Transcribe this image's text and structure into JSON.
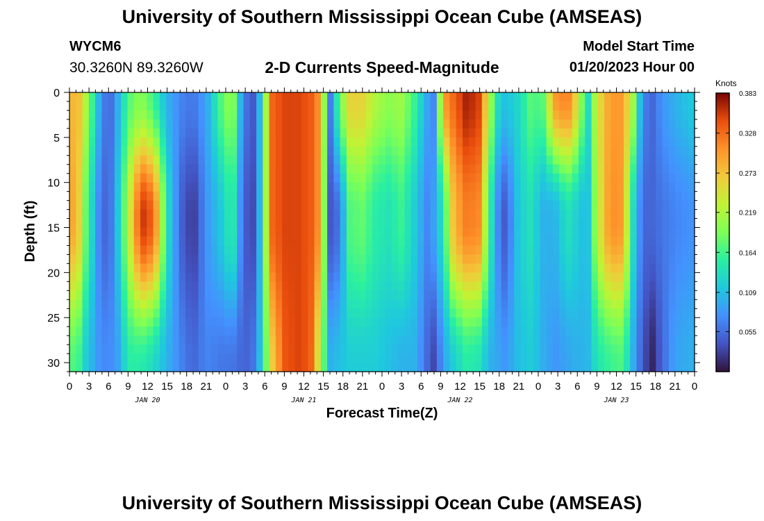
{
  "header": {
    "title": "University of Southern Mississippi Ocean Cube (AMSEAS)",
    "station": "WYCM6",
    "coordinates": "30.3260N  89.3260W",
    "subtitle": "2-D Currents Speed-Magnitude",
    "model_start_label": "Model Start Time",
    "model_start_value": "01/20/2023 Hour 00"
  },
  "footer": {
    "title": "University of Southern Mississippi Ocean Cube (AMSEAS)"
  },
  "chart_data": {
    "type": "heatmap",
    "title": "2-D Currents Speed-Magnitude",
    "xlabel": "Forecast Time(Z)",
    "ylabel": "Depth (ft)",
    "x_ticks": [
      "0",
      "3",
      "6",
      "9",
      "12",
      "15",
      "18",
      "21",
      "0",
      "3",
      "6",
      "9",
      "12",
      "15",
      "18",
      "21",
      "0",
      "3",
      "6",
      "9",
      "12",
      "15",
      "18",
      "21",
      "0",
      "3",
      "6",
      "9",
      "12",
      "15",
      "18",
      "21",
      "0"
    ],
    "x_range_hours": [
      0,
      96
    ],
    "day_labels": [
      {
        "label": "JAN 20",
        "hour": 12
      },
      {
        "label": "JAN 21",
        "hour": 36
      },
      {
        "label": "JAN 22",
        "hour": 60
      },
      {
        "label": "JAN 23",
        "hour": 84
      }
    ],
    "y_ticks": [
      "0",
      "5",
      "10",
      "15",
      "20",
      "25",
      "30"
    ],
    "y_range_ft": [
      0,
      31
    ],
    "y_inverted": true,
    "colorbar": {
      "units": "Knots",
      "min": 0,
      "max": 0.383,
      "tick_labels": [
        "0.383",
        "0.328",
        "0.273",
        "0.219",
        "0.164",
        "0.109",
        "0.055"
      ],
      "tick_values": [
        0.383,
        0.328,
        0.273,
        0.219,
        0.164,
        0.109,
        0.055
      ]
    },
    "speed_bands_knots": [
      {
        "hour": 0.0,
        "top": 0.26,
        "mid": 0.28,
        "bot": 0.16
      },
      {
        "hour": 1.0,
        "top": 0.3,
        "mid": 0.3,
        "bot": 0.18
      },
      {
        "hour": 2.5,
        "top": 0.22,
        "mid": 0.18,
        "bot": 0.12
      },
      {
        "hour": 4.5,
        "top": 0.1,
        "mid": 0.07,
        "bot": 0.08
      },
      {
        "hour": 6.0,
        "top": 0.04,
        "mid": 0.04,
        "bot": 0.07
      },
      {
        "hour": 7.5,
        "top": 0.1,
        "mid": 0.12,
        "bot": 0.09
      },
      {
        "hour": 9.0,
        "top": 0.17,
        "mid": 0.22,
        "bot": 0.15
      },
      {
        "hour": 11.0,
        "top": 0.2,
        "mid": 0.36,
        "bot": 0.15
      },
      {
        "hour": 13.0,
        "top": 0.16,
        "mid": 0.33,
        "bot": 0.13
      },
      {
        "hour": 15.0,
        "top": 0.1,
        "mid": 0.14,
        "bot": 0.1
      },
      {
        "hour": 17.0,
        "top": 0.07,
        "mid": 0.05,
        "bot": 0.07
      },
      {
        "hour": 19.0,
        "top": 0.06,
        "mid": 0.02,
        "bot": 0.05
      },
      {
        "hour": 21.0,
        "top": 0.09,
        "mid": 0.08,
        "bot": 0.07
      },
      {
        "hour": 23.5,
        "top": 0.18,
        "mid": 0.12,
        "bot": 0.06
      },
      {
        "hour": 25.0,
        "top": 0.21,
        "mid": 0.16,
        "bot": 0.06
      },
      {
        "hour": 26.5,
        "top": 0.08,
        "mid": 0.06,
        "bot": 0.05
      },
      {
        "hour": 28.0,
        "top": 0.03,
        "mid": 0.02,
        "bot": 0.05
      },
      {
        "hour": 29.5,
        "top": 0.12,
        "mid": 0.12,
        "bot": 0.12
      },
      {
        "hour": 31.0,
        "top": 0.33,
        "mid": 0.33,
        "bot": 0.26
      },
      {
        "hour": 33.0,
        "top": 0.35,
        "mid": 0.35,
        "bot": 0.34
      },
      {
        "hour": 35.0,
        "top": 0.35,
        "mid": 0.35,
        "bot": 0.35
      },
      {
        "hour": 37.0,
        "top": 0.34,
        "mid": 0.34,
        "bot": 0.34
      },
      {
        "hour": 38.5,
        "top": 0.3,
        "mid": 0.3,
        "bot": 0.22
      },
      {
        "hour": 40.0,
        "top": 0.06,
        "mid": 0.04,
        "bot": 0.1
      },
      {
        "hour": 41.5,
        "top": 0.18,
        "mid": 0.06,
        "bot": 0.11
      },
      {
        "hour": 43.0,
        "top": 0.26,
        "mid": 0.17,
        "bot": 0.12
      },
      {
        "hour": 45.0,
        "top": 0.26,
        "mid": 0.18,
        "bot": 0.12
      },
      {
        "hour": 47.0,
        "top": 0.22,
        "mid": 0.15,
        "bot": 0.12
      },
      {
        "hour": 49.0,
        "top": 0.2,
        "mid": 0.14,
        "bot": 0.11
      },
      {
        "hour": 51.0,
        "top": 0.21,
        "mid": 0.16,
        "bot": 0.1
      },
      {
        "hour": 53.0,
        "top": 0.16,
        "mid": 0.12,
        "bot": 0.1
      },
      {
        "hour": 55.0,
        "top": 0.09,
        "mid": 0.07,
        "bot": 0.05
      },
      {
        "hour": 56.0,
        "top": 0.07,
        "mid": 0.09,
        "bot": 0.03
      },
      {
        "hour": 57.5,
        "top": 0.3,
        "mid": 0.15,
        "bot": 0.09
      },
      {
        "hour": 59.0,
        "top": 0.33,
        "mid": 0.28,
        "bot": 0.12
      },
      {
        "hour": 61.0,
        "top": 0.37,
        "mid": 0.32,
        "bot": 0.15
      },
      {
        "hour": 63.0,
        "top": 0.35,
        "mid": 0.31,
        "bot": 0.14
      },
      {
        "hour": 64.5,
        "top": 0.22,
        "mid": 0.16,
        "bot": 0.1
      },
      {
        "hour": 66.0,
        "top": 0.12,
        "mid": 0.06,
        "bot": 0.09
      },
      {
        "hour": 67.0,
        "top": 0.11,
        "mid": 0.04,
        "bot": 0.08
      },
      {
        "hour": 69.0,
        "top": 0.13,
        "mid": 0.12,
        "bot": 0.11
      },
      {
        "hour": 71.0,
        "top": 0.18,
        "mid": 0.14,
        "bot": 0.12
      },
      {
        "hour": 72.5,
        "top": 0.16,
        "mid": 0.1,
        "bot": 0.1
      },
      {
        "hour": 74.5,
        "top": 0.3,
        "mid": 0.1,
        "bot": 0.08
      },
      {
        "hour": 76.5,
        "top": 0.32,
        "mid": 0.14,
        "bot": 0.09
      },
      {
        "hour": 78.0,
        "top": 0.25,
        "mid": 0.12,
        "bot": 0.1
      },
      {
        "hour": 79.5,
        "top": 0.12,
        "mid": 0.1,
        "bot": 0.1
      },
      {
        "hour": 81.0,
        "top": 0.24,
        "mid": 0.22,
        "bot": 0.14
      },
      {
        "hour": 83.0,
        "top": 0.3,
        "mid": 0.31,
        "bot": 0.16
      },
      {
        "hour": 85.0,
        "top": 0.3,
        "mid": 0.3,
        "bot": 0.17
      },
      {
        "hour": 86.5,
        "top": 0.22,
        "mid": 0.14,
        "bot": 0.1
      },
      {
        "hour": 88.0,
        "top": 0.07,
        "mid": 0.05,
        "bot": 0.04
      },
      {
        "hour": 89.5,
        "top": 0.05,
        "mid": 0.05,
        "bot": 0.01
      },
      {
        "hour": 91.0,
        "top": 0.08,
        "mid": 0.06,
        "bot": 0.05
      },
      {
        "hour": 93.0,
        "top": 0.1,
        "mid": 0.07,
        "bot": 0.09
      },
      {
        "hour": 96.0,
        "top": 0.12,
        "mid": 0.08,
        "bot": 0.1
      }
    ]
  }
}
